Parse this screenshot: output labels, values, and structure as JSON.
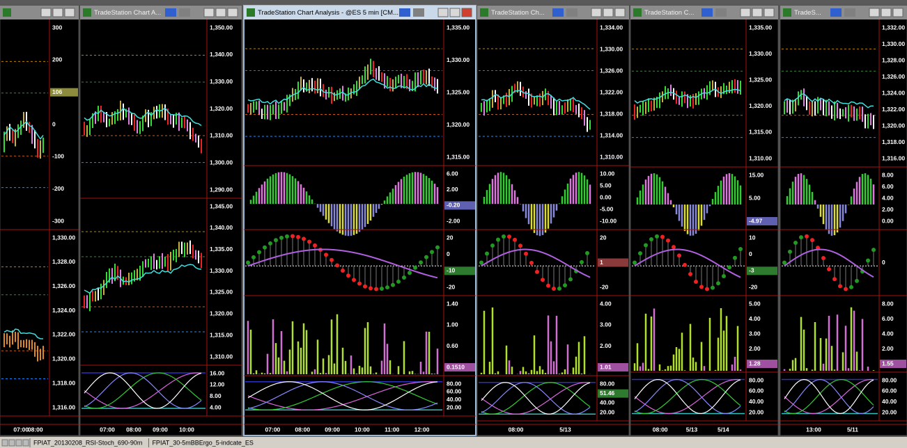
{
  "windows": [
    {
      "panes": [
        {
          "labels": [
            "300",
            "200",
            {
              "label": "106",
              "box": "#8c8c3c"
            },
            "0",
            "-100",
            "-200",
            "-300"
          ]
        },
        {
          "labels": [
            "1,330.00",
            "1,328.00",
            "1,326.00",
            "1,324.00",
            "1,322.00",
            "1,320.00",
            "1,318.00",
            "1,316.00"
          ]
        }
      ],
      "times": [
        "07:00",
        "08:00"
      ]
    },
    {
      "title": "TradeStation Chart A...",
      "panes": [
        {
          "labels": [
            "1,350.00",
            "1,340.00",
            "1,330.00",
            "1,320.00",
            "1,310.00",
            "1,300.00",
            "1,290.00"
          ]
        },
        {
          "labels": [
            "1,345.00",
            "1,340.00",
            "1,335.00",
            "1,330.00",
            "1,325.00",
            "1,320.00",
            "1,315.00",
            "1,310.00"
          ]
        },
        {
          "labels": [
            "16.00",
            "12.00",
            "8.00",
            "4.00"
          ]
        }
      ],
      "times": [
        "07:00",
        "08:00",
        "09:00",
        "10:00"
      ]
    },
    {
      "title": "TradeStation Chart Analysis - @ES 5 min [CM...",
      "panes": [
        {
          "labels": [
            "1,335.00",
            "1,330.00",
            "1,325.00",
            "1,320.00",
            "1,315.00"
          ]
        },
        {
          "labels": [
            "6.00",
            "2.00",
            {
              "label": "-0.20",
              "box": "#6060b0"
            },
            "-2.00"
          ]
        },
        {
          "labels": [
            "20",
            "0",
            {
              "label": "-10",
              "box": "#2e7a2e"
            },
            "-20"
          ]
        },
        {
          "labels": [
            "1.40",
            "1.00",
            "0.60",
            {
              "label": "0.1510",
              "box": "#a050a0"
            }
          ]
        },
        {
          "labels": [
            "80.00",
            "60.00",
            "40.00",
            "20.00"
          ]
        }
      ],
      "times": [
        "07:00",
        "08:00",
        "09:00",
        "10:00",
        "11:00",
        "12:00"
      ]
    },
    {
      "title": "TradeStation Ch...",
      "panes": [
        {
          "labels": [
            "1,334.00",
            "1,330.00",
            "1,326.00",
            "1,322.00",
            "1,318.00",
            "1,314.00",
            "1,310.00"
          ]
        },
        {
          "labels": [
            "10.00",
            "5.00",
            "0.00",
            "-5.00",
            "-10.00"
          ]
        },
        {
          "labels": [
            "20",
            {
              "label": "1",
              "box": "#8a3a3a"
            },
            "-20"
          ]
        },
        {
          "labels": [
            "4.00",
            "3.00",
            "2.00",
            {
              "label": "1.01",
              "box": "#a050a0"
            }
          ]
        },
        {
          "labels": [
            "80.00",
            {
              "label": "51.46",
              "box": "#2e7a2e"
            },
            "40.00",
            "20.00"
          ]
        }
      ],
      "times": [
        "08:00",
        "5/13"
      ]
    },
    {
      "title": "TradeStation C...",
      "panes": [
        {
          "labels": [
            "1,335.00",
            "1,330.00",
            "1,325.00",
            "1,320.00",
            "1,315.00",
            "1,310.00"
          ]
        },
        {
          "labels": [
            "15.00",
            "5.00",
            {
              "label": "-4.97",
              "box": "#6060b0"
            }
          ]
        },
        {
          "labels": [
            "10",
            "0",
            {
              "label": "-3",
              "box": "#2e7a2e"
            },
            "-20"
          ]
        },
        {
          "labels": [
            "5.00",
            "4.00",
            "3.00",
            "2.00",
            {
              "label": "1.28",
              "box": "#a050a0"
            }
          ]
        },
        {
          "labels": [
            "80.00",
            "60.00",
            "40.00",
            "20.00"
          ]
        }
      ],
      "times": [
        "08:00",
        "5/13",
        "5/14"
      ]
    },
    {
      "title": "TradeS...",
      "panes": [
        {
          "labels": [
            "1,332.00",
            "1,330.00",
            "1,328.00",
            "1,326.00",
            "1,324.00",
            "1,322.00",
            "1,320.00",
            "1,318.00",
            "1,316.00"
          ]
        },
        {
          "labels": [
            "8.00",
            "6.00",
            "4.00",
            "2.00",
            "0.00"
          ]
        },
        {
          "labels": [
            "0"
          ]
        },
        {
          "labels": [
            "8.00",
            "6.00",
            "4.00",
            "2.00",
            {
              "label": "1.55",
              "box": "#a050a0"
            }
          ]
        },
        {
          "labels": [
            "80.00",
            "60.00",
            "40.00",
            "20.00"
          ]
        }
      ],
      "times": [
        "13:00",
        "5/11"
      ]
    }
  ],
  "tabs": [
    "FPIAT_20130208_RSI-Stoch_690-90m",
    "FPIAT_30-5mBBErgo_5-indcate_ES"
  ]
}
